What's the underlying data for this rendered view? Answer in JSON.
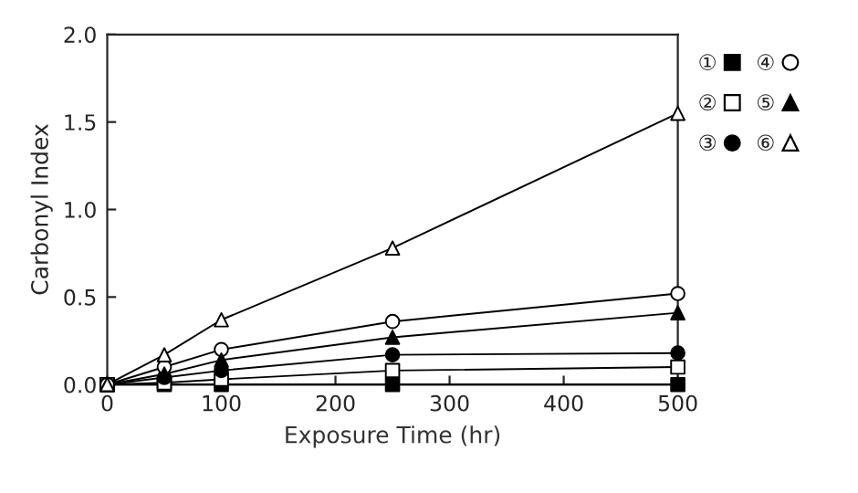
{
  "chart_data": {
    "type": "line",
    "xlabel": "Exposure Time (hr)",
    "ylabel": "Carbonyl Index",
    "x": [
      0,
      50,
      100,
      250,
      500
    ],
    "series": [
      {
        "name": "①",
        "color": "#000000",
        "marker": "square",
        "colors": [
          "#000000",
          "#000000",
          "#000000",
          "#000000",
          "#000000"
        ],
        "values": [
          0,
          0,
          0,
          0,
          0
        ]
      },
      {
        "name": "②",
        "color": "#000000",
        "marker": "square",
        "colors": [
          "#ffffff",
          "#ffffff",
          "#ffffff",
          "#ffffff",
          "#ffffff"
        ],
        "values": [
          0,
          0.01,
          0.03,
          0.08,
          0.1
        ]
      },
      {
        "name": "③",
        "color": "#000000",
        "marker": "circle",
        "colors": [
          "#000000",
          "#000000",
          "#000000",
          "#000000",
          "#000000"
        ],
        "values": [
          0,
          0.04,
          0.08,
          0.17,
          0.18
        ]
      },
      {
        "name": "④",
        "color": "#000000",
        "marker": "circle",
        "colors": [
          "#ffffff",
          "#ffffff",
          "#ffffff",
          "#ffffff",
          "#ffffff"
        ],
        "values": [
          0,
          0.1,
          0.2,
          0.36,
          0.52
        ]
      },
      {
        "name": "⑤",
        "color": "#000000",
        "marker": "triangle",
        "colors": [
          "#000000",
          "#000000",
          "#000000",
          "#000000",
          "#000000"
        ],
        "values": [
          0,
          0.06,
          0.14,
          0.27,
          0.41
        ]
      },
      {
        "name": "⑥",
        "color": "#000000",
        "marker": "triangle",
        "colors": [
          "#ffffff",
          "#ffffff",
          "#ffffff",
          "#ffffff",
          "#ffffff"
        ],
        "values": [
          0,
          0.17,
          0.37,
          0.78,
          1.55
        ]
      }
    ],
    "xlim": [
      0,
      500
    ],
    "xticks": [
      0,
      100,
      200,
      300,
      400,
      500
    ],
    "ylim": [
      0,
      2.0
    ],
    "yticks": [
      {
        "value": 0,
        "label": "0.0"
      },
      {
        "value": 0.5,
        "label": "0.5"
      },
      {
        "value": 1.0,
        "label": "1.0"
      },
      {
        "value": 1.5,
        "label": "1.5"
      },
      {
        "value": 2.0,
        "label": "2.0"
      }
    ],
    "grid": false,
    "legend": "right",
    "line_style": "solid"
  }
}
